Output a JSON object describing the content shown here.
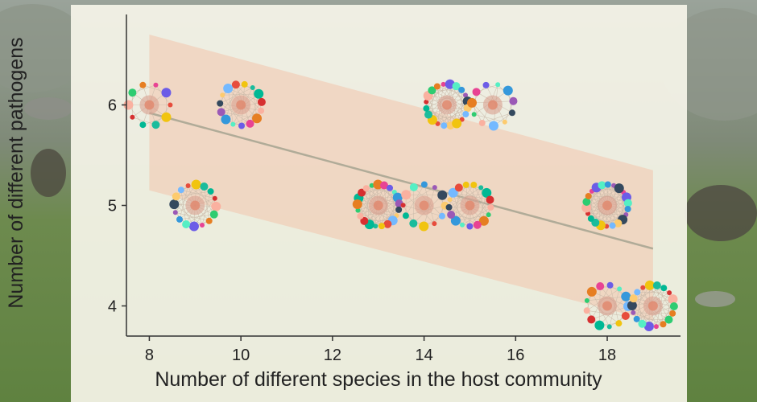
{
  "chart_data": {
    "type": "scatter",
    "title": "",
    "xlabel": "Number of different species in the host community",
    "ylabel": "Number of different pathogens",
    "xlim": [
      7.5,
      19.6
    ],
    "ylim": [
      3.7,
      6.9
    ],
    "xticks": [
      "8",
      "10",
      "12",
      "14",
      "16",
      "18"
    ],
    "yticks": [
      "4",
      "5",
      "6"
    ],
    "grid": false,
    "legend": "none",
    "points": [
      {
        "x": 8,
        "y": 6
      },
      {
        "x": 10,
        "y": 6
      },
      {
        "x": 14.5,
        "y": 6
      },
      {
        "x": 15.5,
        "y": 6
      },
      {
        "x": 9,
        "y": 5
      },
      {
        "x": 13,
        "y": 5
      },
      {
        "x": 14,
        "y": 5
      },
      {
        "x": 15,
        "y": 5
      },
      {
        "x": 18,
        "y": 5
      },
      {
        "x": 18,
        "y": 4
      },
      {
        "x": 19,
        "y": 4
      }
    ],
    "trend": {
      "x": [
        8,
        19
      ],
      "y": [
        5.92,
        4.57
      ]
    },
    "ci": {
      "x": [
        8,
        19
      ],
      "upper": [
        6.7,
        5.35
      ],
      "lower": [
        5.15,
        3.85
      ]
    },
    "colors": {
      "trend_line": "#b0ab98",
      "ci_band": "#f2c8b0",
      "axis": "#333333",
      "node_colors": [
        "#e74c3c",
        "#3498db",
        "#2ecc71",
        "#f1c40f",
        "#9b59b6",
        "#e67e22",
        "#1abc9c",
        "#34495e",
        "#e84393",
        "#00b894",
        "#fdcb6e",
        "#6c5ce7",
        "#d63031",
        "#74b9ff",
        "#55efc4",
        "#fab1a0"
      ]
    }
  }
}
